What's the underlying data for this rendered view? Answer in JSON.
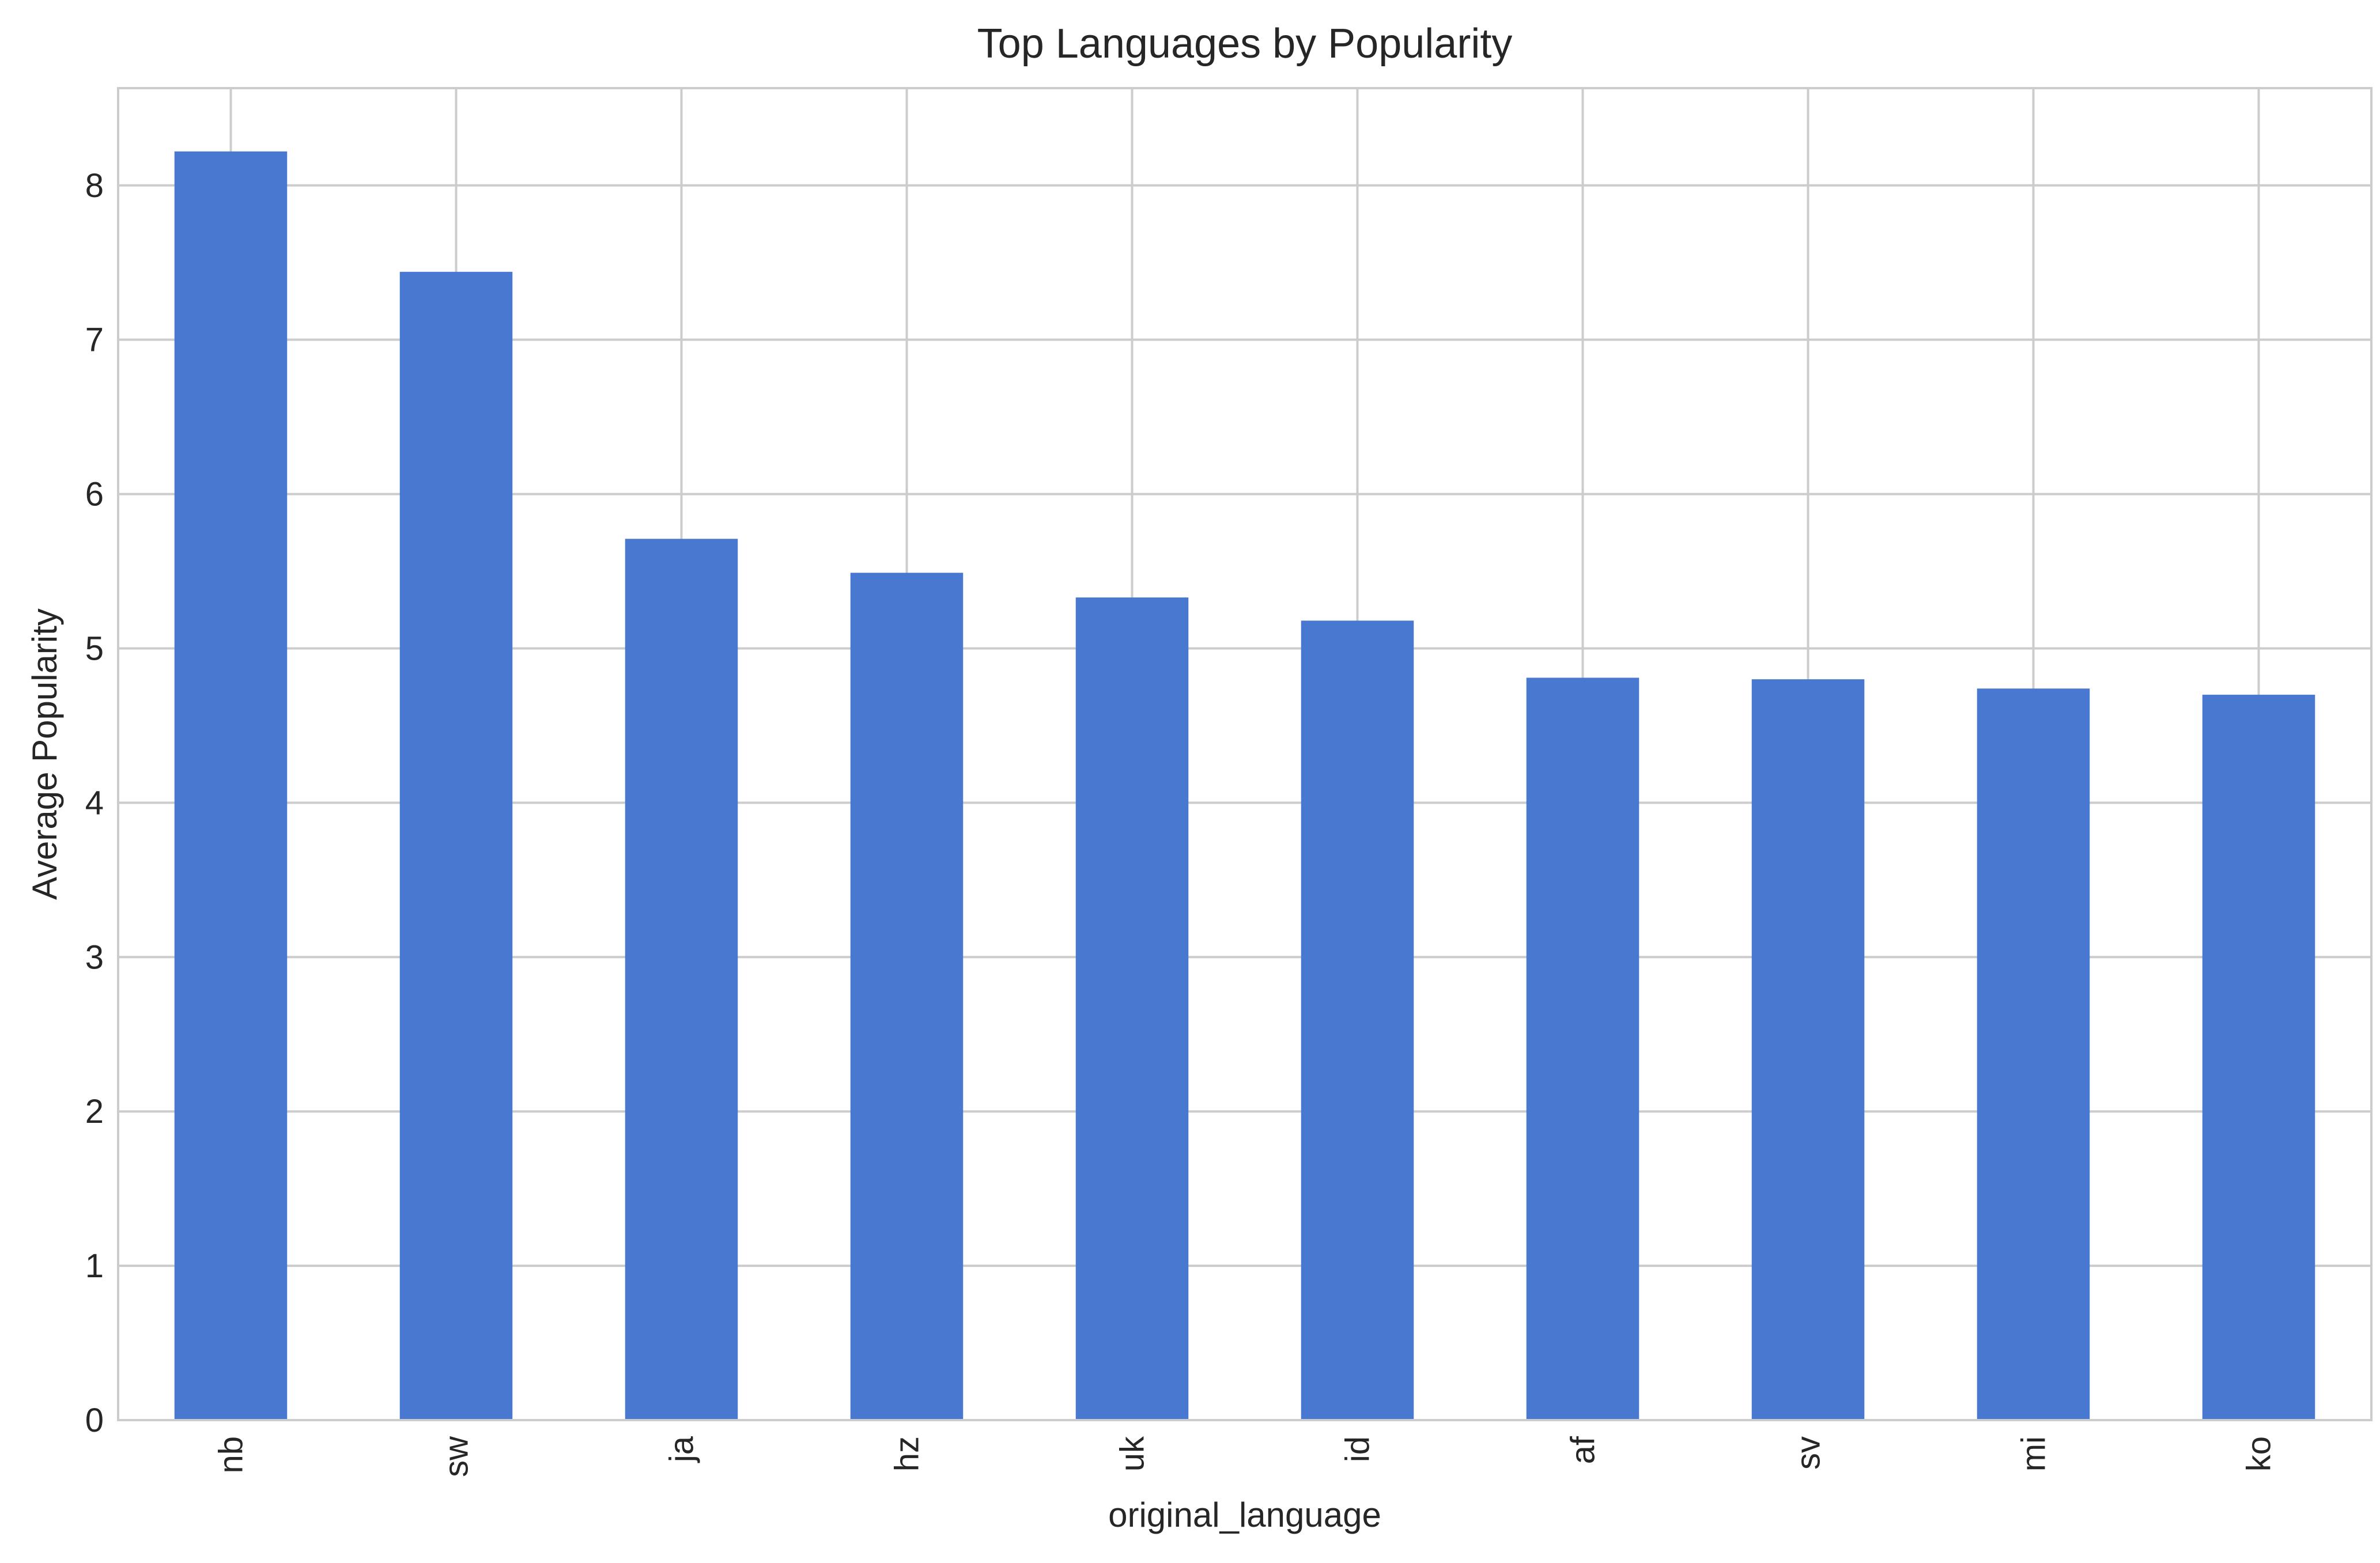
{
  "chart_data": {
    "type": "bar",
    "title": "Top Languages by Popularity",
    "xlabel": "original_language",
    "ylabel": "Average Popularity",
    "categories": [
      "nb",
      "sw",
      "ja",
      "hz",
      "uk",
      "id",
      "af",
      "sv",
      "mi",
      "ko"
    ],
    "values": [
      8.22,
      7.44,
      5.71,
      5.49,
      5.33,
      5.18,
      4.81,
      4.8,
      4.74,
      4.7
    ],
    "ylim": [
      0,
      8.63
    ],
    "yticks": [
      "0",
      "1",
      "2",
      "3",
      "4",
      "5",
      "6",
      "7",
      "8"
    ],
    "grid": true,
    "legend": "none",
    "colors": {
      "bar": "#4878cf",
      "grid": "#cccccc",
      "spine": "#cccccc",
      "text": "#262626",
      "background": "#ffffff"
    }
  }
}
